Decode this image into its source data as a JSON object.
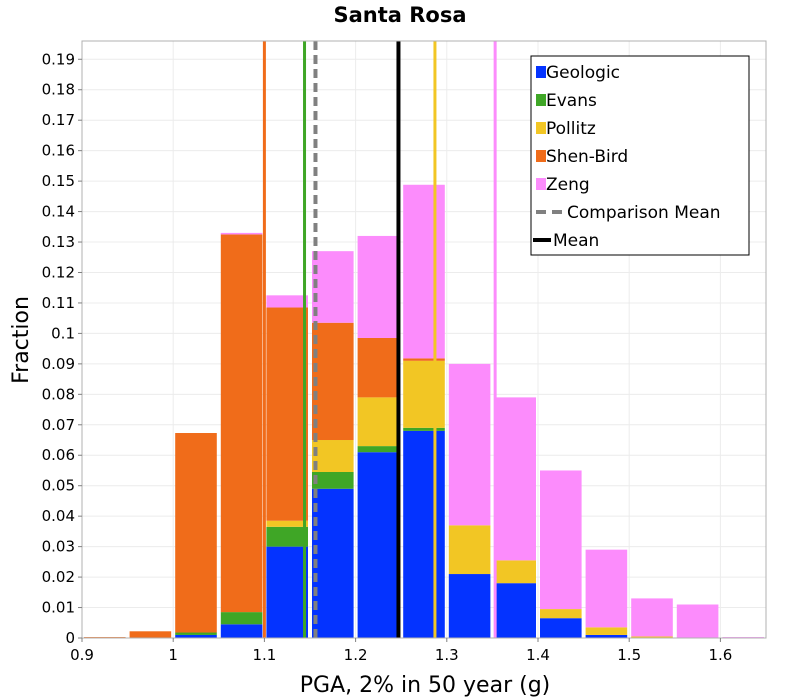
{
  "chart_data": {
    "type": "bar",
    "stacked": true,
    "title": "Santa Rosa",
    "xlabel": "PGA, 2% in 50 year (g)",
    "ylabel": "Fraction",
    "xlim": [
      0.9,
      1.65
    ],
    "ylim": [
      0,
      0.196
    ],
    "xticks": [
      "0.9",
      "1",
      "1.1",
      "1.2",
      "1.3",
      "1.4",
      "1.5",
      "1.6"
    ],
    "yticks": [
      "0",
      "0.01",
      "0.02",
      "0.03",
      "0.04",
      "0.05",
      "0.06",
      "0.07",
      "0.08",
      "0.09",
      "0.1",
      "0.11",
      "0.12",
      "0.13",
      "0.14",
      "0.15",
      "0.16",
      "0.17",
      "0.18",
      "0.19"
    ],
    "bins": [
      {
        "x0": 0.9,
        "x1": 0.95
      },
      {
        "x0": 0.95,
        "x1": 1.0
      },
      {
        "x0": 1.0,
        "x1": 1.05
      },
      {
        "x0": 1.05,
        "x1": 1.1
      },
      {
        "x0": 1.1,
        "x1": 1.15
      },
      {
        "x0": 1.15,
        "x1": 1.2
      },
      {
        "x0": 1.2,
        "x1": 1.25
      },
      {
        "x0": 1.25,
        "x1": 1.3
      },
      {
        "x0": 1.3,
        "x1": 1.35
      },
      {
        "x0": 1.35,
        "x1": 1.4
      },
      {
        "x0": 1.4,
        "x1": 1.45
      },
      {
        "x0": 1.45,
        "x1": 1.5
      },
      {
        "x0": 1.5,
        "x1": 1.55
      },
      {
        "x0": 1.55,
        "x1": 1.6
      },
      {
        "x0": 1.6,
        "x1": 1.65
      }
    ],
    "series": [
      {
        "name": "Geologic",
        "color": "#0433ff",
        "values": [
          0,
          0,
          0.001,
          0.0045,
          0.03,
          0.049,
          0.061,
          0.068,
          0.021,
          0.018,
          0.0065,
          0.001,
          0,
          0,
          0
        ]
      },
      {
        "name": "Evans",
        "color": "#3fa626",
        "values": [
          0,
          0,
          0.0008,
          0.004,
          0.0065,
          0.0055,
          0.002,
          0.001,
          0,
          0,
          0,
          0,
          0,
          0,
          0
        ]
      },
      {
        "name": "Pollitz",
        "color": "#f2c624",
        "values": [
          0,
          0,
          0,
          0,
          0.002,
          0.0105,
          0.016,
          0.022,
          0.016,
          0.0075,
          0.003,
          0.0025,
          0.0005,
          0,
          0
        ]
      },
      {
        "name": "Shen-Bird",
        "color": "#f06c1a",
        "values": [
          0.0003,
          0.0022,
          0.0655,
          0.124,
          0.07,
          0.0385,
          0.0195,
          0.0008,
          0,
          0,
          0,
          0,
          0,
          0,
          0
        ]
      },
      {
        "name": "Zeng",
        "color": "#fc8cfc",
        "values": [
          0,
          0,
          0,
          0.0005,
          0.004,
          0.0235,
          0.0335,
          0.057,
          0.053,
          0.0535,
          0.0455,
          0.0255,
          0.0125,
          0.011,
          0.0003
        ]
      }
    ],
    "vertical_lines": [
      {
        "name": "Shen-Bird",
        "x": 1.1,
        "color": "#f06c1a",
        "style": "solid"
      },
      {
        "name": "Evans",
        "x": 1.144,
        "color": "#3fa626",
        "style": "solid"
      },
      {
        "name": "Comparison Mean",
        "x": 1.156,
        "color": "#808080",
        "style": "dashed"
      },
      {
        "name": "Mean",
        "x": 1.247,
        "color": "#000000",
        "style": "solid"
      },
      {
        "name": "Pollitz",
        "x": 1.287,
        "color": "#f2c624",
        "style": "solid"
      },
      {
        "name": "Zeng",
        "x": 1.353,
        "color": "#fc8cfc",
        "style": "solid"
      }
    ],
    "legend": {
      "position": "top-right",
      "entries": [
        {
          "label": "Geologic",
          "color": "#0433ff",
          "kind": "box"
        },
        {
          "label": "Evans",
          "color": "#3fa626",
          "kind": "box"
        },
        {
          "label": "Pollitz",
          "color": "#f2c624",
          "kind": "box"
        },
        {
          "label": "Shen-Bird",
          "color": "#f06c1a",
          "kind": "box"
        },
        {
          "label": "Zeng",
          "color": "#fc8cfc",
          "kind": "box"
        },
        {
          "label": "Comparison Mean",
          "color": "#808080",
          "kind": "dashed"
        },
        {
          "label": "Mean",
          "color": "#000000",
          "kind": "line"
        }
      ]
    },
    "grid": true
  }
}
